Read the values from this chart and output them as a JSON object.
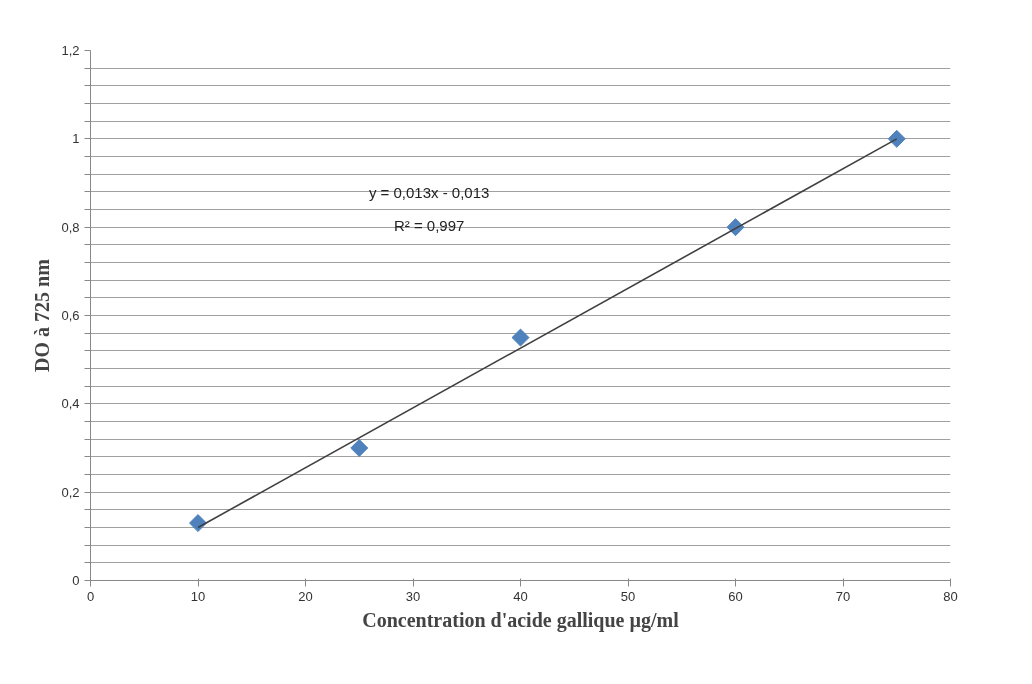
{
  "chart_data": {
    "type": "scatter",
    "xlabel": "Concentration d'acide gallique µg/ml",
    "ylabel": "DO à 725 nm",
    "annotations": [
      "y = 0,013x - 0,013",
      "R² = 0,997"
    ],
    "series": [
      {
        "color": "#4f81bd",
        "marker": "diamond",
        "x": [
          10,
          25,
          40,
          60,
          75
        ],
        "values": [
          0.13,
          0.3,
          0.55,
          0.8,
          1.0
        ]
      },
      {
        "type": "line",
        "color": "#404040",
        "marker": "none",
        "line_style": "solid",
        "x": [
          10,
          75
        ],
        "values": [
          0.12,
          1.0
        ]
      }
    ],
    "xlim": [
      0,
      80
    ],
    "xticks": [
      0,
      10,
      20,
      30,
      40,
      50,
      60,
      70,
      80
    ],
    "ylim": [
      0,
      1.2
    ],
    "yticks": [
      0,
      {
        "value": 0.04,
        "label": null
      },
      {
        "value": 0.08,
        "label": null
      },
      {
        "value": 0.12,
        "label": null
      },
      {
        "value": 0.16,
        "label": null
      },
      {
        "value": 0.2,
        "label": "0,2"
      },
      {
        "value": 0.24,
        "label": null
      },
      {
        "value": 0.28,
        "label": null
      },
      {
        "value": 0.32,
        "label": null
      },
      {
        "value": 0.36,
        "label": null
      },
      {
        "value": 0.4,
        "label": "0,4"
      },
      {
        "value": 0.44,
        "label": null
      },
      {
        "value": 0.48,
        "label": null
      },
      {
        "value": 0.52,
        "label": null
      },
      {
        "value": 0.56,
        "label": null
      },
      {
        "value": 0.6,
        "label": "0,6"
      },
      {
        "value": 0.64,
        "label": null
      },
      {
        "value": 0.68,
        "label": null
      },
      {
        "value": 0.72,
        "label": null
      },
      {
        "value": 0.76,
        "label": null
      },
      {
        "value": 0.8,
        "label": "0,8"
      },
      {
        "value": 0.84,
        "label": null
      },
      {
        "value": 0.88,
        "label": null
      },
      {
        "value": 0.92,
        "label": null
      },
      {
        "value": 0.96,
        "label": null
      },
      1,
      {
        "value": 1.04,
        "label": null
      },
      {
        "value": 1.08,
        "label": null
      },
      {
        "value": 1.12,
        "label": null
      },
      {
        "value": 1.16,
        "label": null
      },
      {
        "value": 1.2,
        "label": "1,2"
      }
    ],
    "grid": "y"
  }
}
